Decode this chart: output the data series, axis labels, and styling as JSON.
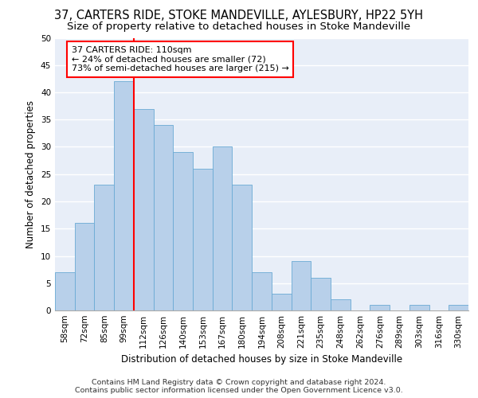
{
  "title1": "37, CARTERS RIDE, STOKE MANDEVILLE, AYLESBURY, HP22 5YH",
  "title2": "Size of property relative to detached houses in Stoke Mandeville",
  "xlabel": "Distribution of detached houses by size in Stoke Mandeville",
  "ylabel": "Number of detached properties",
  "categories": [
    "58sqm",
    "72sqm",
    "85sqm",
    "99sqm",
    "112sqm",
    "126sqm",
    "140sqm",
    "153sqm",
    "167sqm",
    "180sqm",
    "194sqm",
    "208sqm",
    "221sqm",
    "235sqm",
    "248sqm",
    "262sqm",
    "276sqm",
    "289sqm",
    "303sqm",
    "316sqm",
    "330sqm"
  ],
  "values": [
    7,
    16,
    23,
    42,
    37,
    34,
    29,
    26,
    30,
    23,
    7,
    3,
    9,
    6,
    2,
    0,
    1,
    0,
    1,
    0,
    1
  ],
  "bar_color": "#b8d0ea",
  "bar_edge_color": "#6aaad4",
  "annotation_text": "37 CARTERS RIDE: 110sqm\n← 24% of detached houses are smaller (72)\n73% of semi-detached houses are larger (215) →",
  "annotation_box_color": "white",
  "annotation_box_edge_color": "red",
  "vline_color": "red",
  "ylim": [
    0,
    50
  ],
  "yticks": [
    0,
    5,
    10,
    15,
    20,
    25,
    30,
    35,
    40,
    45,
    50
  ],
  "footer_line1": "Contains HM Land Registry data © Crown copyright and database right 2024.",
  "footer_line2": "Contains public sector information licensed under the Open Government Licence v3.0.",
  "bg_color": "#e8eef8",
  "grid_color": "white",
  "title1_fontsize": 10.5,
  "title2_fontsize": 9.5,
  "xlabel_fontsize": 8.5,
  "ylabel_fontsize": 8.5,
  "tick_fontsize": 7.5,
  "annotation_fontsize": 8,
  "footer_fontsize": 6.8
}
